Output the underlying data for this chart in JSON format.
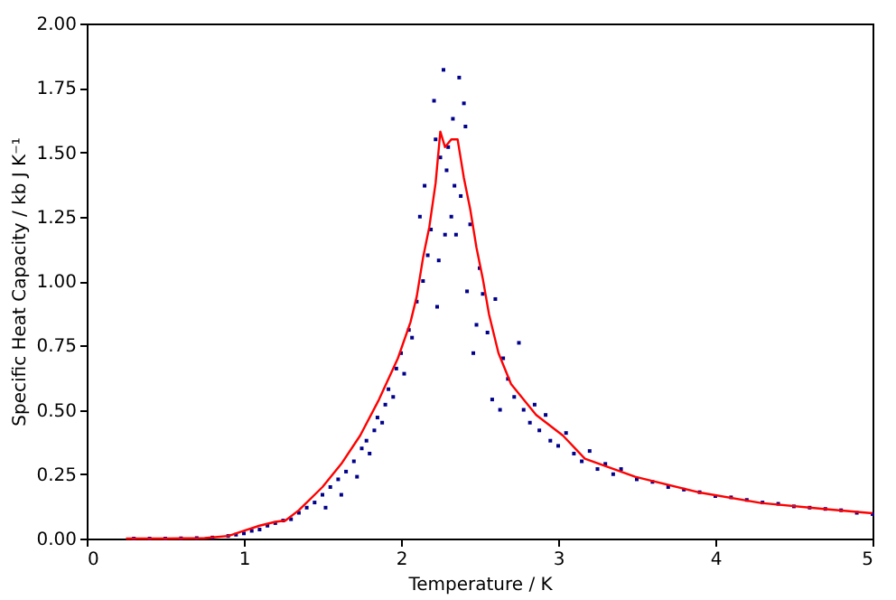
{
  "chart_data": {
    "type": "scatter",
    "xlabel": "Temperature / K",
    "ylabel": "Specific Heat Capacity / kb J K⁻¹",
    "xlim": [
      0,
      5
    ],
    "ylim": [
      0,
      2
    ],
    "xticks": [
      0,
      1,
      2,
      3,
      4,
      5
    ],
    "yticks": [
      {
        "value": 0,
        "label": "0.00"
      },
      {
        "value": 0.25,
        "label": "0.25"
      },
      {
        "value": 0.5,
        "label": "0.50"
      },
      {
        "value": 0.75,
        "label": "0.75"
      },
      {
        "value": 1,
        "label": "1.00"
      },
      {
        "value": 1.25,
        "label": "1.25"
      },
      {
        "value": 1.5,
        "label": "1.50"
      },
      {
        "value": 1.75,
        "label": "1.75"
      },
      {
        "value": 2,
        "label": "2.00"
      }
    ],
    "grid": false,
    "series": [
      {
        "color": "#00008b",
        "marker": "square",
        "x": [
          0.3,
          0.4,
          0.5,
          0.6,
          0.7,
          0.8,
          0.9,
          0.95,
          1.0,
          1.05,
          1.1,
          1.15,
          1.2,
          1.25,
          1.3,
          1.35,
          1.4,
          1.45,
          1.5,
          1.52,
          1.55,
          1.6,
          1.62,
          1.65,
          1.7,
          1.72,
          1.75,
          1.78,
          1.8,
          1.83,
          1.85,
          1.88,
          1.9,
          1.92,
          1.95,
          1.97,
          2.0,
          2.02,
          2.05,
          2.07,
          2.1,
          2.12,
          2.14,
          2.15,
          2.17,
          2.19,
          2.21,
          2.22,
          2.23,
          2.24,
          2.25,
          2.27,
          2.28,
          2.29,
          2.3,
          2.32,
          2.33,
          2.34,
          2.35,
          2.37,
          2.38,
          2.4,
          2.41,
          2.42,
          2.44,
          2.46,
          2.48,
          2.5,
          2.52,
          2.55,
          2.58,
          2.6,
          2.63,
          2.65,
          2.68,
          2.72,
          2.75,
          2.78,
          2.82,
          2.85,
          2.88,
          2.92,
          2.95,
          3.0,
          3.05,
          3.1,
          3.15,
          3.2,
          3.25,
          3.3,
          3.35,
          3.4,
          3.5,
          3.6,
          3.7,
          3.8,
          3.9,
          4.0,
          4.1,
          4.2,
          4.3,
          4.4,
          4.5,
          4.6,
          4.7,
          4.8,
          4.9,
          5.0
        ],
        "values": [
          0,
          0,
          0,
          0.001,
          0.002,
          0.004,
          0.01,
          0.015,
          0.02,
          0.03,
          0.035,
          0.05,
          0.06,
          0.07,
          0.075,
          0.1,
          0.12,
          0.14,
          0.17,
          0.12,
          0.2,
          0.23,
          0.17,
          0.26,
          0.3,
          0.24,
          0.35,
          0.38,
          0.33,
          0.42,
          0.47,
          0.45,
          0.52,
          0.58,
          0.55,
          0.66,
          0.72,
          0.64,
          0.81,
          0.78,
          0.92,
          1.25,
          1.0,
          1.37,
          1.1,
          1.2,
          1.7,
          1.55,
          0.9,
          1.08,
          1.48,
          1.82,
          1.18,
          1.43,
          1.52,
          1.25,
          1.63,
          1.37,
          1.18,
          1.79,
          1.33,
          1.69,
          1.6,
          0.96,
          1.22,
          0.72,
          0.83,
          1.05,
          0.95,
          0.8,
          0.54,
          0.93,
          0.5,
          0.7,
          0.62,
          0.55,
          0.76,
          0.5,
          0.45,
          0.52,
          0.42,
          0.48,
          0.38,
          0.36,
          0.41,
          0.33,
          0.3,
          0.34,
          0.27,
          0.29,
          0.25,
          0.27,
          0.23,
          0.22,
          0.2,
          0.19,
          0.18,
          0.165,
          0.16,
          0.15,
          0.14,
          0.135,
          0.125,
          0.12,
          0.115,
          0.11,
          0.1,
          0.095
        ]
      },
      {
        "type": "line",
        "color": "#ff0000",
        "marker": "none",
        "line_style": "solid",
        "x": [
          0.25,
          0.5,
          0.75,
          0.9,
          1.0,
          1.1,
          1.2,
          1.265,
          1.35,
          1.5,
          1.62,
          1.74,
          1.86,
          1.98,
          2.06,
          2.1,
          2.14,
          2.18,
          2.22,
          2.25,
          2.28,
          2.32,
          2.36,
          2.4,
          2.44,
          2.48,
          2.52,
          2.56,
          2.62,
          2.7,
          2.86,
          3.03,
          3.17,
          3.49,
          3.89,
          4.29,
          4.69,
          5.0
        ],
        "values": [
          0,
          0,
          0.002,
          0.01,
          0.03,
          0.05,
          0.065,
          0.07,
          0.11,
          0.2,
          0.29,
          0.4,
          0.54,
          0.7,
          0.84,
          0.94,
          1.09,
          1.21,
          1.38,
          1.58,
          1.52,
          1.55,
          1.55,
          1.4,
          1.28,
          1.13,
          1.01,
          0.87,
          0.72,
          0.6,
          0.48,
          0.4,
          0.31,
          0.24,
          0.18,
          0.138,
          0.115,
          0.098
        ]
      }
    ]
  }
}
